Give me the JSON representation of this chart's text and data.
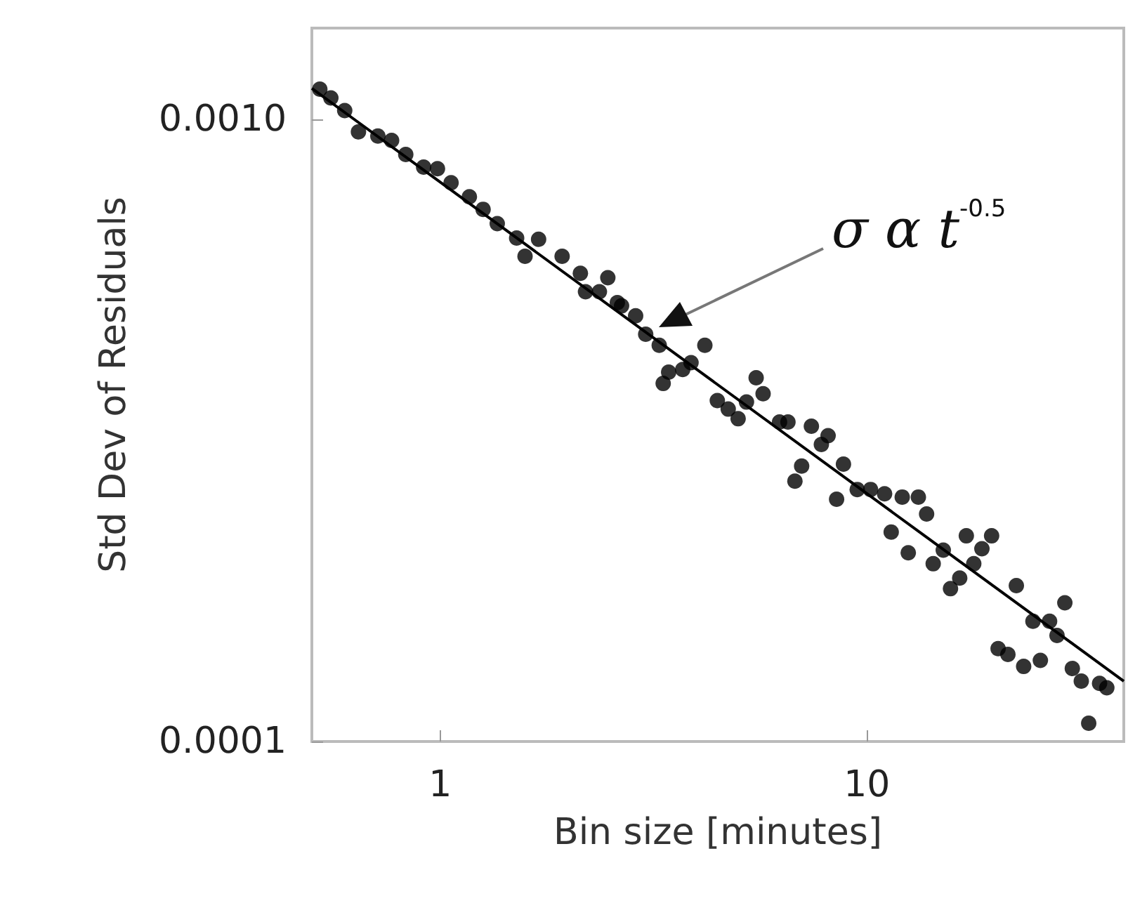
{
  "chart_data": {
    "type": "scatter",
    "xlabel": "Bin size [minutes]",
    "ylabel": "Std Dev of Residuals",
    "log": "xy",
    "grid": false,
    "xlim": [
      0.5,
      40
    ],
    "xticks": [
      1,
      10
    ],
    "ylim": [
      0.0001,
      0.0014
    ],
    "yticks": [
      0.0001,
      {
        "value": 0.001,
        "label": "0.0010"
      }
    ],
    "annotations": [
      "σ α t$^{-0.5}$"
    ],
    "series": [
      {
        "marker": "circle",
        "color": "#000000",
        "x": [
          0.522,
          0.554,
          0.597,
          0.643,
          0.714,
          0.769,
          0.83,
          0.914,
          0.985,
          1.06,
          1.17,
          1.26,
          1.36,
          1.51,
          1.58,
          1.7,
          1.93,
          2.13,
          2.19,
          2.36,
          2.47,
          2.6,
          2.66,
          2.87,
          3.03,
          3.26,
          3.33,
          3.43,
          3.7,
          3.87,
          4.17,
          4.46,
          4.73,
          4.99,
          5.22,
          5.5,
          5.71,
          6.24,
          6.53,
          6.78,
          7.03,
          7.41,
          7.82,
          8.11,
          8.49,
          8.81,
          9.49,
          10.2,
          11.0,
          11.4,
          12.1,
          12.5,
          13.2,
          13.8,
          14.3,
          15.1,
          15.7,
          16.5,
          17.1,
          17.8,
          18.6,
          19.6,
          20.3,
          21.4,
          22.4,
          23.3,
          24.5,
          25.5,
          26.8,
          27.9,
          29.1,
          30.3,
          31.8,
          33.1,
          35.1,
          36.5
        ],
        "values": [
          0.001117,
          0.001081,
          0.001032,
          0.000954,
          0.000939,
          0.000924,
          0.000877,
          0.000837,
          0.000832,
          0.00079,
          0.00075,
          0.000716,
          0.000679,
          0.000644,
          0.000602,
          0.000641,
          0.000602,
          0.000565,
          0.000528,
          0.000528,
          0.000556,
          0.000507,
          0.000501,
          0.000483,
          0.000451,
          0.000433,
          0.000376,
          0.000392,
          0.000396,
          0.000406,
          0.000433,
          0.000353,
          0.000342,
          0.00033,
          0.000351,
          0.000384,
          0.000362,
          0.000326,
          0.000326,
          0.000262,
          0.000277,
          0.000321,
          0.0003,
          0.00031,
          0.000245,
          0.000279,
          0.000254,
          0.000254,
          0.00025,
          0.000217,
          0.000247,
          0.000201,
          0.000247,
          0.000232,
          0.000193,
          0.000203,
          0.000176,
          0.000183,
          0.000214,
          0.000193,
          0.000204,
          0.000214,
          0.000141,
          0.000138,
          0.000178,
          0.000132,
          0.000156,
          0.000135,
          0.000156,
          0.000148,
          0.000167,
          0.000131,
          0.000125,
          0.000107,
          0.000124,
          0.000122
        ]
      },
      {
        "type": "line",
        "marker": "none",
        "color": "#000000",
        "x": [
          0.5,
          40
        ],
        "values": [
          0.00112,
          0.000125
        ]
      }
    ]
  }
}
